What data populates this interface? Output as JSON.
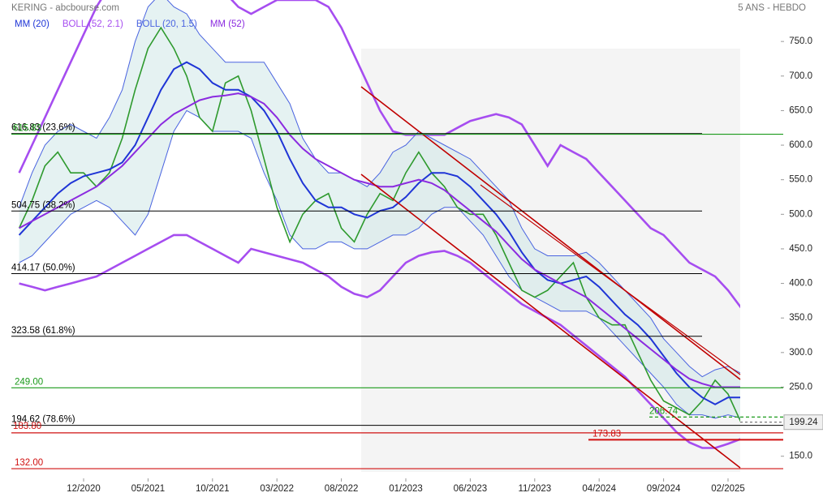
{
  "chart_data": {
    "type": "line",
    "title": "KERING - abcbourse.com",
    "subtitle": "5 ANS - HEBDO",
    "x": [
      "07/2020",
      "08/2020",
      "09/2020",
      "10/2020",
      "11/2020",
      "12/2020",
      "01/2021",
      "02/2021",
      "03/2021",
      "04/2021",
      "05/2021",
      "06/2021",
      "07/2021",
      "08/2021",
      "09/2021",
      "10/2021",
      "11/2021",
      "12/2021",
      "01/2022",
      "02/2022",
      "03/2022",
      "04/2022",
      "05/2022",
      "06/2022",
      "07/2022",
      "08/2022",
      "09/2022",
      "10/2022",
      "11/2022",
      "12/2022",
      "01/2023",
      "02/2023",
      "03/2023",
      "04/2023",
      "05/2023",
      "06/2023",
      "07/2023",
      "08/2023",
      "09/2023",
      "10/2023",
      "11/2023",
      "12/2023",
      "01/2024",
      "02/2024",
      "03/2024",
      "04/2024",
      "05/2024",
      "06/2024",
      "07/2024",
      "08/2024",
      "09/2024",
      "10/2024",
      "11/2024",
      "12/2024",
      "01/2025",
      "02/2025",
      "03/2025"
    ],
    "xticks": [
      "12/2020",
      "05/2021",
      "10/2021",
      "03/2022",
      "08/2022",
      "01/2023",
      "06/2023",
      "11/2023",
      "04/2024",
      "09/2024",
      "02/2025"
    ],
    "ylim": [
      118,
      810
    ],
    "yticks": [
      {
        "value": 150,
        "label": "150.0"
      },
      {
        "value": 250,
        "label": "250.0"
      },
      {
        "value": 300,
        "label": "300.0"
      },
      {
        "value": 350,
        "label": "350.0"
      },
      {
        "value": 400,
        "label": "400.0"
      },
      {
        "value": 450,
        "label": "450.0"
      },
      {
        "value": 500,
        "label": "500.0"
      },
      {
        "value": 550,
        "label": "550.0"
      },
      {
        "value": 600,
        "label": "600.0"
      },
      {
        "value": 650,
        "label": "650.0"
      },
      {
        "value": 700,
        "label": "700.0"
      },
      {
        "value": 750,
        "label": "750.0"
      }
    ],
    "price": {
      "color": "#2e9a2e",
      "values": [
        480,
        520,
        570,
        590,
        560,
        560,
        540,
        560,
        610,
        680,
        740,
        770,
        740,
        700,
        640,
        620,
        690,
        700,
        650,
        580,
        510,
        460,
        500,
        520,
        530,
        480,
        460,
        500,
        530,
        520,
        560,
        590,
        560,
        540,
        510,
        500,
        500,
        470,
        430,
        390,
        380,
        390,
        410,
        430,
        380,
        350,
        340,
        340,
        300,
        260,
        230,
        220,
        210,
        230,
        260,
        240,
        199.24
      ]
    },
    "series": [
      {
        "name": "MM (20)",
        "color": "#1f35d6",
        "values": [
          470,
          490,
          510,
          530,
          545,
          555,
          560,
          565,
          575,
          600,
          640,
          680,
          710,
          720,
          710,
          690,
          680,
          680,
          670,
          650,
          620,
          580,
          545,
          520,
          510,
          510,
          500,
          495,
          505,
          510,
          525,
          545,
          560,
          560,
          555,
          540,
          520,
          500,
          475,
          445,
          420,
          405,
          400,
          405,
          410,
          395,
          375,
          355,
          340,
          320,
          295,
          270,
          250,
          235,
          225,
          235,
          235
        ]
      },
      {
        "name": "BOLL (52, 2.1)",
        "color": "#a64df0",
        "upper": [
          560,
          600,
          640,
          680,
          720,
          760,
          800,
          830,
          850,
          860,
          870,
          870,
          860,
          850,
          840,
          830,
          820,
          800,
          790,
          800,
          810,
          810,
          810,
          810,
          800,
          770,
          730,
          690,
          650,
          620,
          615,
          615,
          615,
          615,
          625,
          635,
          640,
          645,
          640,
          630,
          600,
          570,
          600,
          590,
          580,
          560,
          540,
          520,
          500,
          480,
          470,
          450,
          430,
          420,
          410,
          390,
          365
        ],
        "lower": [
          400,
          395,
          390,
          395,
          400,
          405,
          410,
          420,
          430,
          440,
          450,
          460,
          470,
          470,
          460,
          450,
          440,
          430,
          450,
          445,
          440,
          435,
          430,
          420,
          410,
          395,
          385,
          380,
          390,
          410,
          430,
          440,
          445,
          447,
          440,
          430,
          415,
          400,
          385,
          370,
          360,
          350,
          340,
          325,
          310,
          295,
          280,
          265,
          245,
          225,
          205,
          185,
          170,
          162,
          162,
          168,
          175
        ]
      },
      {
        "name": "BOLL (20, 1.5)",
        "color": "#4a64e0",
        "upper": [
          510,
          560,
          600,
          620,
          630,
          620,
          610,
          640,
          680,
          750,
          800,
          820,
          800,
          790,
          760,
          740,
          720,
          720,
          720,
          720,
          690,
          660,
          610,
          580,
          560,
          560,
          550,
          540,
          560,
          590,
          600,
          620,
          610,
          600,
          590,
          580,
          560,
          540,
          520,
          480,
          450,
          440,
          440,
          440,
          445,
          430,
          410,
          390,
          370,
          350,
          320,
          300,
          280,
          265,
          275,
          280,
          270
        ],
        "lower": [
          430,
          440,
          460,
          480,
          500,
          510,
          520,
          510,
          490,
          470,
          500,
          560,
          620,
          650,
          640,
          620,
          620,
          620,
          610,
          560,
          520,
          470,
          450,
          450,
          460,
          460,
          450,
          450,
          460,
          470,
          470,
          480,
          500,
          510,
          510,
          490,
          470,
          440,
          410,
          390,
          380,
          370,
          360,
          360,
          360,
          350,
          330,
          310,
          290,
          270,
          250,
          225,
          210,
          210,
          205,
          210,
          205
        ]
      },
      {
        "name": "MM (52)",
        "color": "#8b2be0",
        "values": [
          480,
          490,
          500,
          510,
          520,
          530,
          540,
          555,
          570,
          590,
          610,
          630,
          645,
          655,
          665,
          670,
          672,
          675,
          670,
          660,
          640,
          615,
          595,
          580,
          570,
          560,
          550,
          545,
          540,
          540,
          545,
          550,
          545,
          535,
          520,
          505,
          490,
          475,
          455,
          435,
          420,
          410,
          400,
          390,
          380,
          365,
          350,
          335,
          320,
          305,
          290,
          275,
          262,
          255,
          250,
          250,
          250
        ]
      }
    ],
    "levels": [
      {
        "value": 616.83,
        "label": "616.83  (23.6%)",
        "color": "#000000"
      },
      {
        "value": 504.75,
        "label": "504.75  (38.2%)",
        "color": "#000000"
      },
      {
        "value": 414.17,
        "label": "414.17  (50.0%)",
        "color": "#000000"
      },
      {
        "value": 323.58,
        "label": "323.58  (61.8%)",
        "color": "#000000"
      },
      {
        "value": 194.62,
        "label": "194.62  (78.6%)",
        "color": "#000000"
      },
      {
        "value": 615.83,
        "label": "615.83",
        "color": "#1a9a1a"
      },
      {
        "value": 249,
        "label": "249.00",
        "color": "#1a9a1a"
      },
      {
        "value": 206.74,
        "label": "206.74",
        "color": "#1a9a1a"
      },
      {
        "value": 183.8,
        "label": "183.80",
        "color": "#d01010"
      },
      {
        "value": 173.83,
        "label": "173.83",
        "color": "#d01010"
      },
      {
        "value": 132,
        "label": "132.00",
        "color": "#d01010"
      }
    ]
  }
}
